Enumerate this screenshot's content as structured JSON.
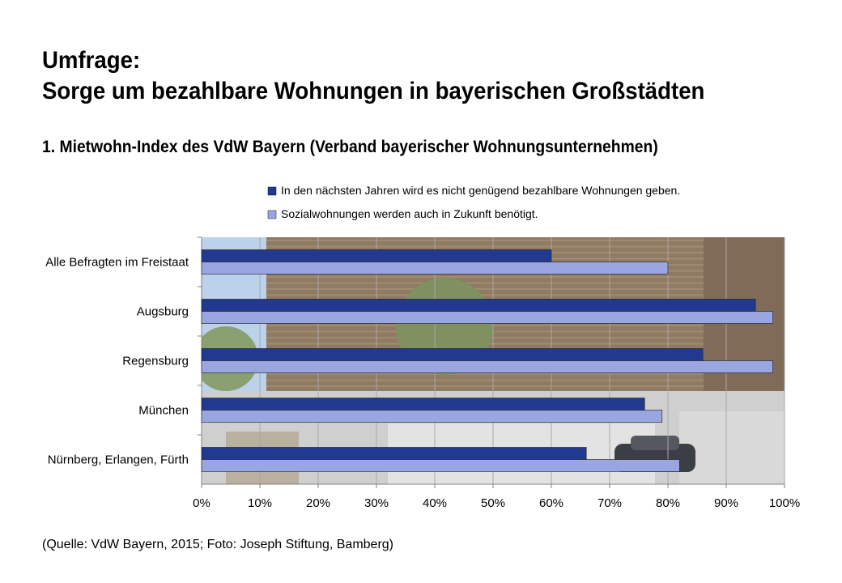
{
  "title_line1": "Umfrage:",
  "title_line2": "Sorge um bezahlbare Wohnungen in bayerischen Großstädten",
  "subtitle": "1. Mietwohn-Index des VdW Bayern (Verband bayerischer Wohnungsunternehmen)",
  "source": "(Quelle: VdW Bayern, 2015; Foto: Joseph Stiftung, Bamberg)",
  "colors": {
    "series1": "#213a8f",
    "series2": "#9aa6e2",
    "photo_sky": "#bcd2ea",
    "photo_facade": "#8f7a63",
    "photo_ground": "#cfcfcf"
  },
  "chart_data": {
    "type": "bar",
    "orientation": "horizontal",
    "categories": [
      "Alle Befragten im Freistaat",
      "Augsburg",
      "Regensburg",
      "München",
      "Nürnberg, Erlangen, Fürth"
    ],
    "series": [
      {
        "name": "In den nächsten Jahren wird es nicht genügend bezahlbare Wohnungen geben.",
        "values": [
          60,
          95,
          86,
          76,
          66
        ]
      },
      {
        "name": "Sozialwohnungen werden auch in Zukunft benötigt.",
        "values": [
          80,
          98,
          98,
          79,
          82
        ]
      }
    ],
    "xlim": [
      0,
      100
    ],
    "xticks": [
      "0%",
      "10%",
      "20%",
      "30%",
      "40%",
      "50%",
      "60%",
      "70%",
      "80%",
      "90%",
      "100%"
    ],
    "legend_position": "top",
    "grid": true,
    "background": "photo"
  }
}
